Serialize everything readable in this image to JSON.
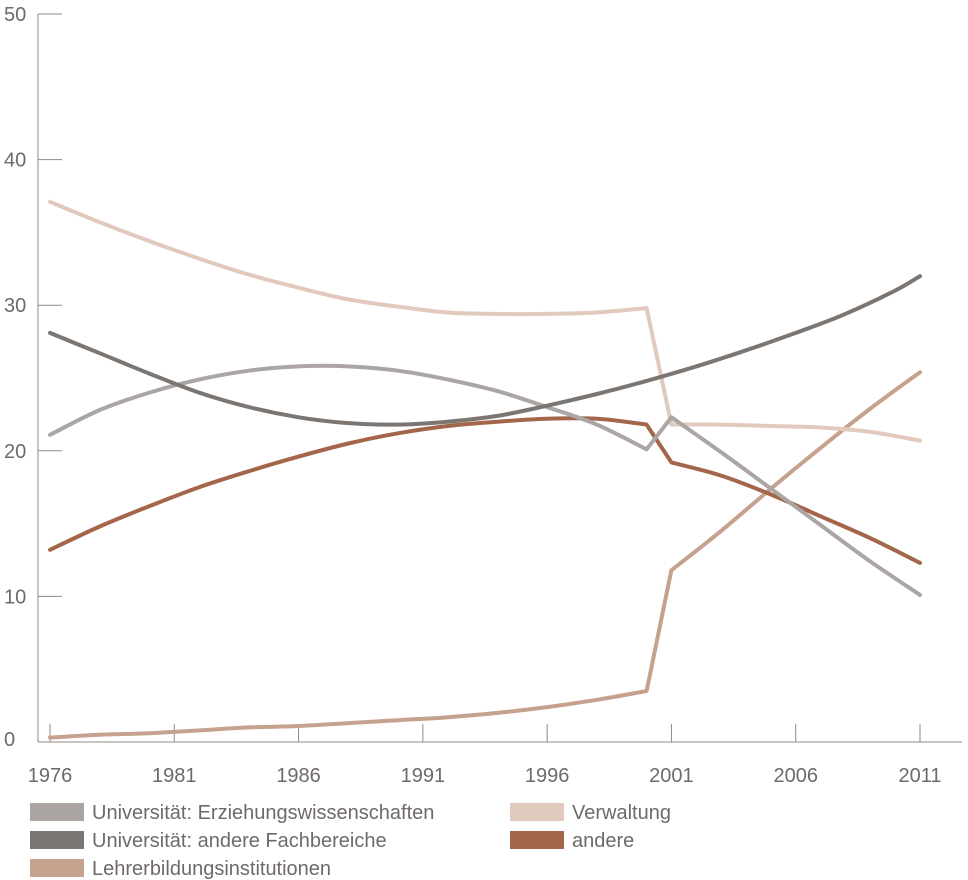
{
  "chart_data": {
    "type": "line",
    "title": "",
    "xlabel": "",
    "ylabel": "",
    "xlim": [
      1976,
      2011
    ],
    "ylim": [
      0,
      50
    ],
    "x_ticks": [
      "1976",
      "1981",
      "1986",
      "1991",
      "1996",
      "2001",
      "2006",
      "2011"
    ],
    "y_ticks": [
      "0",
      "10",
      "20",
      "30",
      "40",
      "50"
    ],
    "grid": false,
    "legend_placement": "bottom",
    "series": [
      {
        "name": "Universität: Erziehungswissenschaften",
        "color": "#aba5a3",
        "x": [
          1976,
          1978,
          1980,
          1982,
          1984,
          1986,
          1988,
          1990,
          1992,
          1994,
          1996,
          1998,
          2000,
          2001,
          2003,
          2005,
          2007,
          2009,
          2011
        ],
        "values": [
          21.1,
          22.8,
          24.0,
          24.9,
          25.5,
          25.8,
          25.8,
          25.5,
          24.9,
          24.1,
          23.0,
          21.8,
          20.1,
          22.3,
          19.9,
          17.4,
          14.9,
          12.4,
          10.1
        ]
      },
      {
        "name": "Universität: andere Fachbereiche",
        "color": "#7c7672",
        "x": [
          1976,
          1978,
          1980,
          1982,
          1984,
          1986,
          1988,
          1990,
          1992,
          1994,
          1996,
          1998,
          2000,
          2002,
          2004,
          2006,
          2008,
          2010,
          2011
        ],
        "values": [
          28.1,
          26.7,
          25.3,
          24.0,
          23.0,
          22.3,
          21.9,
          21.8,
          22.0,
          22.4,
          23.1,
          23.9,
          24.8,
          25.8,
          26.9,
          28.1,
          29.4,
          31.0,
          32.0
        ]
      },
      {
        "name": "Lehrerbildungsinstitutionen",
        "color": "#c6a18e",
        "x": [
          1976,
          1978,
          1980,
          1982,
          1984,
          1986,
          1988,
          1990,
          1992,
          1994,
          1996,
          1998,
          2000,
          2001,
          2003,
          2005,
          2007,
          2009,
          2011
        ],
        "values": [
          0.3,
          0.5,
          0.6,
          0.8,
          1.0,
          1.1,
          1.3,
          1.5,
          1.7,
          2.0,
          2.4,
          2.9,
          3.5,
          11.8,
          14.5,
          17.4,
          20.2,
          22.9,
          25.4
        ]
      },
      {
        "name": "Verwaltung",
        "color": "#e1c9be",
        "x": [
          1976,
          1978,
          1980,
          1982,
          1984,
          1986,
          1988,
          1990,
          1992,
          1994,
          1996,
          1998,
          2000,
          2001,
          2003,
          2005,
          2007,
          2009,
          2011
        ],
        "values": [
          37.1,
          35.7,
          34.4,
          33.2,
          32.1,
          31.2,
          30.4,
          29.9,
          29.5,
          29.4,
          29.4,
          29.5,
          29.8,
          21.8,
          21.8,
          21.7,
          21.6,
          21.3,
          20.7
        ]
      },
      {
        "name": "andere",
        "color": "#a4664a",
        "x": [
          1976,
          1978,
          1980,
          1982,
          1984,
          1986,
          1988,
          1990,
          1992,
          1994,
          1996,
          1998,
          2000,
          2001,
          2003,
          2005,
          2007,
          2009,
          2011
        ],
        "values": [
          13.2,
          14.8,
          16.2,
          17.5,
          18.6,
          19.6,
          20.5,
          21.2,
          21.7,
          22.0,
          22.2,
          22.2,
          21.8,
          19.2,
          18.3,
          17.0,
          15.5,
          14.0,
          12.3
        ]
      }
    ],
    "legend_order": [
      0,
      3,
      1,
      4,
      2
    ]
  }
}
